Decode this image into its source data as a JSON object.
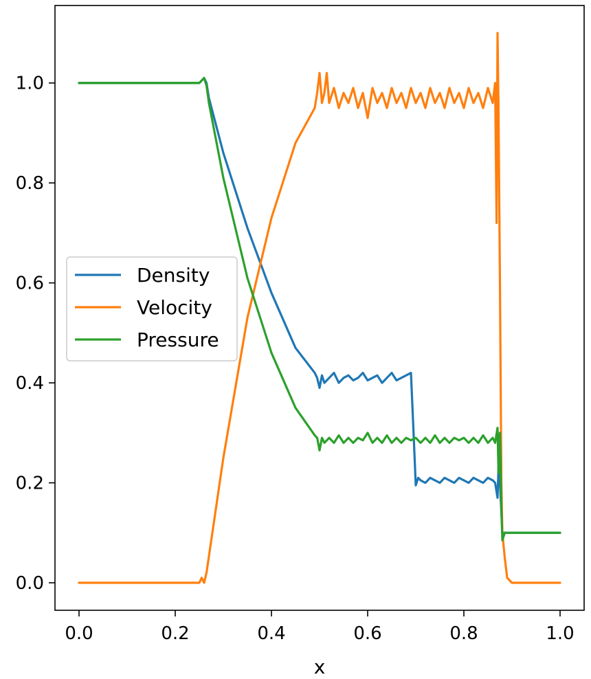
{
  "chart_data": {
    "type": "line",
    "title": "",
    "xlabel": "x",
    "ylabel": "",
    "xlim": [
      -0.05,
      1.05
    ],
    "ylim": [
      -0.055,
      1.155
    ],
    "xticks": [
      0.0,
      0.2,
      0.4,
      0.6,
      0.8,
      1.0
    ],
    "xtick_labels": [
      "0.0",
      "0.2",
      "0.4",
      "0.6",
      "0.8",
      "1.0"
    ],
    "yticks": [
      0.0,
      0.2,
      0.4,
      0.6,
      0.8,
      1.0
    ],
    "ytick_labels": [
      "0.0",
      "0.2",
      "0.4",
      "0.6",
      "0.8",
      "1.0"
    ],
    "grid": false,
    "legend_position": "center-left",
    "series": [
      {
        "name": "Density",
        "color": "#1f77b4",
        "x": [
          0.0,
          0.05,
          0.1,
          0.15,
          0.2,
          0.25,
          0.255,
          0.26,
          0.265,
          0.27,
          0.3,
          0.35,
          0.4,
          0.45,
          0.49,
          0.495,
          0.5,
          0.505,
          0.51,
          0.52,
          0.53,
          0.54,
          0.55,
          0.56,
          0.57,
          0.58,
          0.59,
          0.6,
          0.61,
          0.62,
          0.63,
          0.64,
          0.65,
          0.66,
          0.67,
          0.68,
          0.69,
          0.695,
          0.7,
          0.705,
          0.71,
          0.72,
          0.73,
          0.74,
          0.75,
          0.76,
          0.77,
          0.78,
          0.79,
          0.8,
          0.81,
          0.82,
          0.83,
          0.84,
          0.85,
          0.86,
          0.865,
          0.87,
          0.872,
          0.875,
          0.88,
          0.9,
          0.95,
          1.0
        ],
        "values": [
          1.0,
          1.0,
          1.0,
          1.0,
          1.0,
          1.0,
          1.005,
          1.01,
          1.0,
          0.97,
          0.86,
          0.71,
          0.58,
          0.47,
          0.42,
          0.41,
          0.39,
          0.415,
          0.4,
          0.41,
          0.42,
          0.4,
          0.41,
          0.415,
          0.405,
          0.41,
          0.42,
          0.405,
          0.41,
          0.415,
          0.4,
          0.41,
          0.42,
          0.405,
          0.41,
          0.415,
          0.42,
          0.31,
          0.195,
          0.21,
          0.205,
          0.2,
          0.21,
          0.205,
          0.2,
          0.21,
          0.205,
          0.2,
          0.21,
          0.205,
          0.2,
          0.21,
          0.205,
          0.2,
          0.21,
          0.205,
          0.2,
          0.17,
          0.23,
          0.2,
          0.1,
          0.1,
          0.1,
          0.1
        ]
      },
      {
        "name": "Velocity",
        "color": "#ff7f0e",
        "x": [
          0.0,
          0.05,
          0.1,
          0.15,
          0.2,
          0.25,
          0.255,
          0.26,
          0.265,
          0.3,
          0.35,
          0.4,
          0.45,
          0.49,
          0.495,
          0.5,
          0.505,
          0.51,
          0.515,
          0.52,
          0.53,
          0.54,
          0.55,
          0.56,
          0.57,
          0.58,
          0.59,
          0.6,
          0.61,
          0.62,
          0.63,
          0.64,
          0.65,
          0.66,
          0.67,
          0.68,
          0.69,
          0.7,
          0.71,
          0.72,
          0.73,
          0.74,
          0.75,
          0.76,
          0.77,
          0.78,
          0.79,
          0.8,
          0.81,
          0.82,
          0.83,
          0.84,
          0.85,
          0.86,
          0.865,
          0.868,
          0.87,
          0.872,
          0.875,
          0.878,
          0.88,
          0.885,
          0.89,
          0.9,
          0.95,
          1.0
        ],
        "values": [
          0.0,
          0.0,
          0.0,
          0.0,
          0.0,
          0.0,
          0.01,
          0.0,
          0.02,
          0.25,
          0.53,
          0.73,
          0.88,
          0.95,
          0.98,
          1.02,
          0.96,
          0.98,
          1.02,
          0.96,
          0.99,
          0.95,
          0.98,
          0.96,
          0.99,
          0.95,
          0.98,
          0.93,
          0.99,
          0.96,
          0.98,
          0.95,
          0.99,
          0.96,
          0.98,
          0.95,
          0.99,
          0.96,
          0.98,
          0.95,
          0.99,
          0.96,
          0.98,
          0.95,
          0.99,
          0.96,
          0.98,
          0.95,
          0.99,
          0.96,
          0.98,
          0.95,
          0.99,
          0.96,
          1.0,
          0.72,
          1.1,
          0.95,
          0.6,
          0.2,
          0.1,
          0.05,
          0.01,
          0.0,
          0.0,
          0.0
        ]
      },
      {
        "name": "Pressure",
        "color": "#2ca02c",
        "x": [
          0.0,
          0.05,
          0.1,
          0.15,
          0.2,
          0.25,
          0.255,
          0.26,
          0.265,
          0.27,
          0.3,
          0.35,
          0.4,
          0.45,
          0.49,
          0.495,
          0.5,
          0.505,
          0.51,
          0.52,
          0.53,
          0.54,
          0.55,
          0.56,
          0.57,
          0.58,
          0.59,
          0.6,
          0.61,
          0.62,
          0.63,
          0.64,
          0.65,
          0.66,
          0.67,
          0.68,
          0.69,
          0.7,
          0.71,
          0.72,
          0.73,
          0.74,
          0.75,
          0.76,
          0.77,
          0.78,
          0.79,
          0.8,
          0.81,
          0.82,
          0.83,
          0.84,
          0.85,
          0.86,
          0.865,
          0.87,
          0.872,
          0.875,
          0.878,
          0.88,
          0.885,
          0.9,
          0.95,
          1.0
        ],
        "values": [
          1.0,
          1.0,
          1.0,
          1.0,
          1.0,
          1.0,
          1.005,
          1.01,
          0.995,
          0.96,
          0.81,
          0.61,
          0.46,
          0.35,
          0.295,
          0.29,
          0.265,
          0.29,
          0.28,
          0.29,
          0.28,
          0.295,
          0.28,
          0.29,
          0.28,
          0.29,
          0.285,
          0.3,
          0.28,
          0.29,
          0.28,
          0.295,
          0.28,
          0.29,
          0.28,
          0.29,
          0.285,
          0.29,
          0.28,
          0.29,
          0.28,
          0.295,
          0.28,
          0.29,
          0.28,
          0.29,
          0.285,
          0.29,
          0.28,
          0.29,
          0.28,
          0.295,
          0.28,
          0.29,
          0.28,
          0.31,
          0.22,
          0.3,
          0.15,
          0.085,
          0.1,
          0.1,
          0.1,
          0.1
        ]
      }
    ]
  }
}
